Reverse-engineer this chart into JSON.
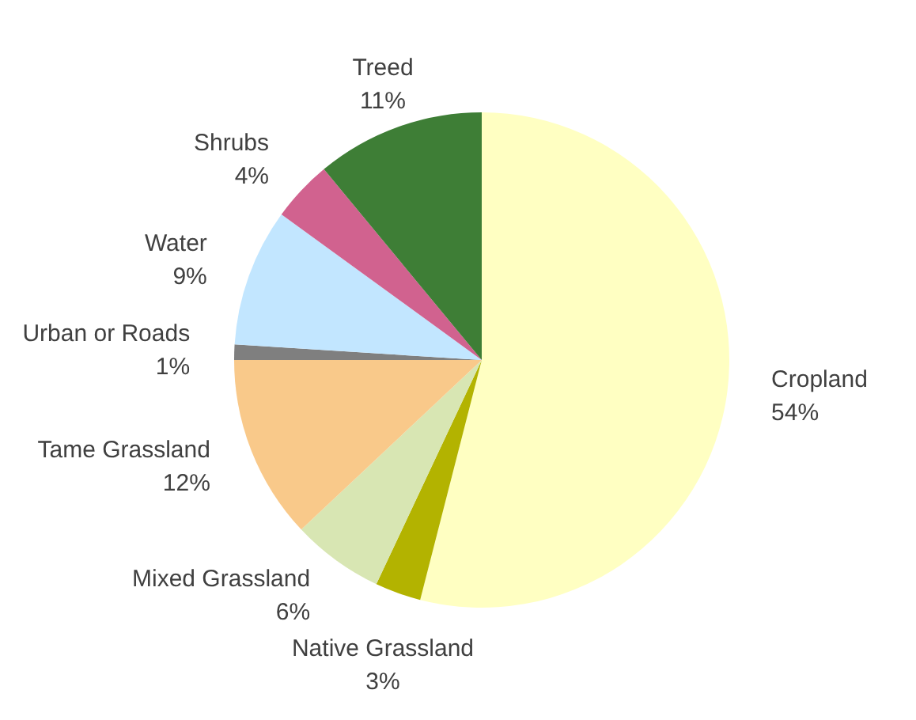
{
  "chart_data": {
    "type": "pie",
    "categories": [
      "Cropland",
      "Native Grassland",
      "Mixed Grassland",
      "Tame Grassland",
      "Urban or Roads",
      "Water",
      "Shrubs",
      "Treed"
    ],
    "values": [
      54,
      3,
      6,
      12,
      1,
      9,
      4,
      11
    ],
    "colors": [
      "#ffffc2",
      "#b3b300",
      "#d8e6b3",
      "#f9c98a",
      "#7f7f7f",
      "#c2e6ff",
      "#d1628f",
      "#3e7e36"
    ],
    "value_labels": [
      "54%",
      "3%",
      "6%",
      "12%",
      "1%",
      "9%",
      "4%",
      "11%"
    ],
    "legend": false
  }
}
